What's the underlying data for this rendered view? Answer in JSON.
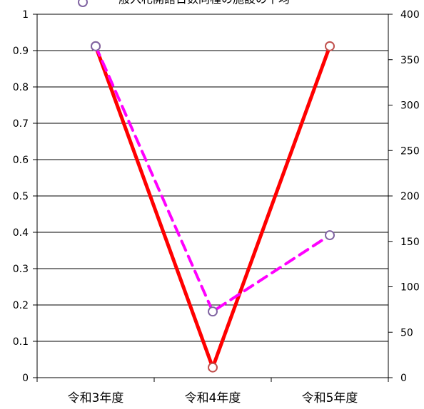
{
  "chart_data": {
    "type": "line",
    "categories": [
      "令和3年度",
      "令和4年度",
      "令和5年度"
    ],
    "y_left": {
      "ylim": [
        0,
        1
      ],
      "ticks": [
        "0",
        "0.1",
        "0.2",
        "0.3",
        "0.4",
        "0.5",
        "0.6",
        "0.7",
        "0.8",
        "0.9",
        "1"
      ]
    },
    "y_right": {
      "ylim": [
        0,
        400
      ],
      "ticks": [
        "0",
        "50",
        "100",
        "150",
        "200",
        "250",
        "300",
        "350",
        "400"
      ]
    },
    "grid": true,
    "legend": {
      "position": "top",
      "text": "一般入札開館日数同種の施設の平均"
    },
    "series": [
      {
        "axis": "left",
        "style": "solid",
        "color": "#ff0000",
        "marker_color": "#c0504d",
        "values": [
          0.912,
          0.028,
          0.912
        ]
      },
      {
        "axis": "left",
        "style": "dashed",
        "color": "#ff00ff",
        "marker_color": "#8064a2",
        "values": [
          0.912,
          0.182,
          0.392
        ]
      }
    ]
  }
}
